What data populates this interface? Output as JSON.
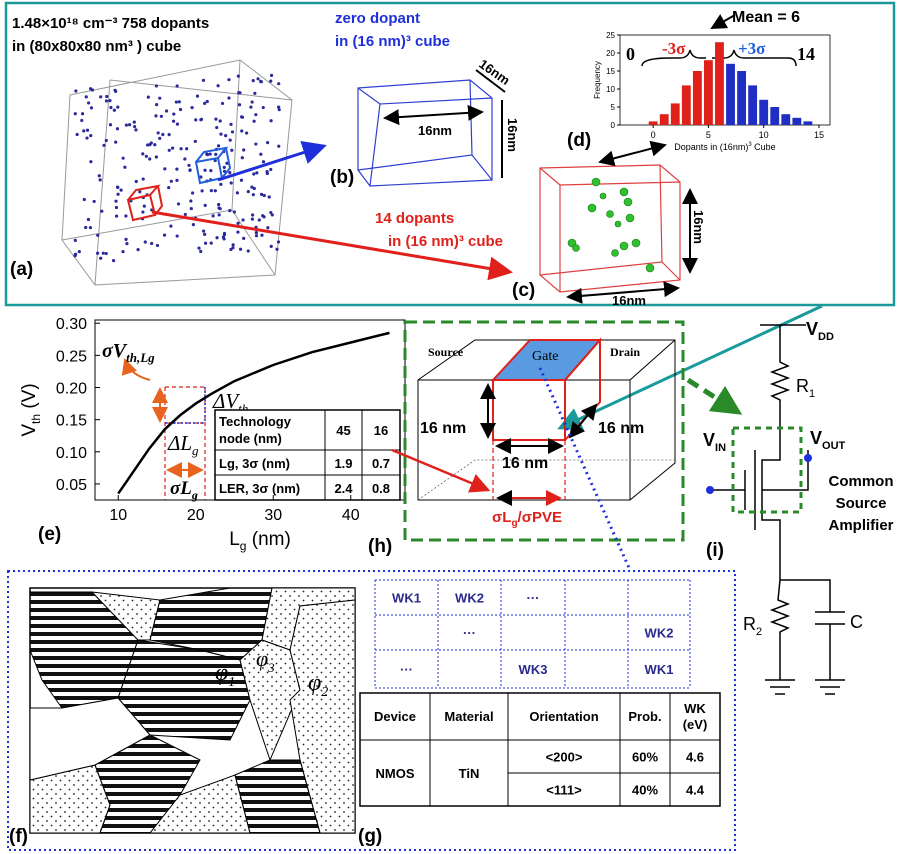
{
  "panel_a": {
    "label": "(a)",
    "line1": "1.48×10¹⁸ cm⁻³ 758 dopants",
    "line2": "in (80x80x80 nm³ ) cube"
  },
  "panel_b": {
    "label": "(b)",
    "line1": "zero dopant",
    "line2": "in (16 nm)³ cube",
    "dim_top": "16nm",
    "dim_front": "16nm",
    "dim_side": "16nm"
  },
  "panel_c": {
    "label": "(c)",
    "line1": "14 dopants",
    "line2": "in (16 nm)³ cube",
    "dim_bottom": "16nm",
    "dim_side": "16nm"
  },
  "panel_d": {
    "label": "(d)",
    "chart": {
      "type": "bar",
      "x": [
        0,
        1,
        2,
        3,
        4,
        5,
        6,
        7,
        8,
        9,
        10,
        11,
        12,
        13,
        14
      ],
      "values": [
        1,
        3,
        6,
        11,
        15,
        18,
        23,
        17,
        15,
        11,
        7,
        5,
        3,
        2,
        1
      ],
      "colors": [
        "#e0201b",
        "#e0201b",
        "#e0201b",
        "#e0201b",
        "#e0201b",
        "#e0201b",
        "#e0201b",
        "#1f2fc4",
        "#1f2fc4",
        "#1f2fc4",
        "#1f2fc4",
        "#1f2fc4",
        "#1f2fc4",
        "#1f2fc4",
        "#1f2fc4"
      ],
      "xlim": [
        -3,
        16
      ],
      "ylim": [
        0,
        25
      ],
      "xticks": [
        0,
        5,
        10,
        15
      ],
      "yticks": [
        0,
        5,
        10,
        15,
        20,
        25
      ],
      "x_label": {
        "main": "Dopants in (16nm)",
        "sup": "3",
        "rest": " Cube"
      },
      "y_label": "Frequency",
      "annotations": {
        "mean": "Mean = 6",
        "low": "0",
        "minus": "-3σ",
        "plus": "+3σ",
        "high": "14"
      }
    }
  },
  "panel_e": {
    "label": "(e)",
    "chart": {
      "type": "line",
      "x": [
        10,
        12,
        14,
        16,
        18,
        20,
        22,
        25,
        30,
        35,
        40,
        45
      ],
      "values": [
        0.035,
        0.07,
        0.105,
        0.135,
        0.157,
        0.175,
        0.19,
        0.21,
        0.235,
        0.255,
        0.27,
        0.285
      ],
      "color": "#000000",
      "xlim": [
        7,
        47
      ],
      "ylim": [
        0.025,
        0.305
      ],
      "xticks": [
        10,
        20,
        30,
        40
      ],
      "yticks": [
        0.05,
        {
          "value": 0.1,
          "label": "0.10"
        },
        0.15,
        {
          "value": 0.2,
          "label": "0.20"
        },
        0.25,
        {
          "value": 0.3,
          "label": "0.30"
        }
      ],
      "x_label": {
        "main": "L",
        "sub": "g",
        "rest": " (nm)"
      },
      "y_label": {
        "main": "V",
        "sub": "th",
        "rest": " (V)"
      },
      "annotations": {
        "sigma_v": {
          "main": "σV",
          "sub": "th,Lg"
        },
        "delta_v": {
          "main": "ΔV",
          "sub": "th"
        },
        "delta_l": {
          "main": "ΔL",
          "sub": "g"
        },
        "sigma_l": {
          "main": "σL",
          "sub": "g"
        }
      }
    },
    "table": {
      "header": [
        [
          "Technology",
          "node (nm)"
        ],
        45,
        16
      ],
      "rows": [
        [
          "Lg, 3σ (nm)",
          1.9,
          0.7
        ],
        [
          "LER, 3σ (nm)",
          2.4,
          0.8
        ]
      ]
    }
  },
  "panel_f": {
    "label": "(f)",
    "phi1": {
      "main": "φ",
      "sub": "1"
    },
    "phi2": {
      "main": "φ",
      "sub": "2"
    },
    "phi3": {
      "main": "φ",
      "sub": "3"
    }
  },
  "panel_g": {
    "label": "(g)",
    "grid": [
      [
        "WK1",
        "WK2",
        "···",
        null,
        null
      ],
      [
        null,
        "···",
        null,
        null,
        "WK2"
      ],
      [
        "···",
        null,
        "WK3",
        null,
        "WK1"
      ]
    ],
    "table": {
      "header": [
        "Device",
        "Material",
        "Orientation",
        "Prob.",
        [
          "WK",
          "(eV)"
        ]
      ],
      "device": "NMOS",
      "material": "TiN",
      "rows": [
        [
          "<200>",
          "60%",
          4.6
        ],
        [
          "<111>",
          "40%",
          4.4
        ]
      ]
    }
  },
  "panel_h": {
    "label": "(h)",
    "source": "Source",
    "gate": "Gate",
    "drain": "Drain",
    "dim_left": "16 nm",
    "dim_right": "16 nm",
    "dim_bottom": "16 nm",
    "sigma": [
      "σL",
      "g",
      "/σPVE"
    ]
  },
  "panel_i": {
    "label": "(i)",
    "vdd": {
      "main": "V",
      "sub": "DD"
    },
    "r1": {
      "main": "R",
      "sub": "1"
    },
    "vin": {
      "main": "V",
      "sub": "IN"
    },
    "vout": {
      "main": "V",
      "sub": "OUT"
    },
    "r2": {
      "main": "R",
      "sub": "2"
    },
    "c": "C",
    "caption": [
      "Common",
      "Source",
      "Amplifier"
    ]
  }
}
